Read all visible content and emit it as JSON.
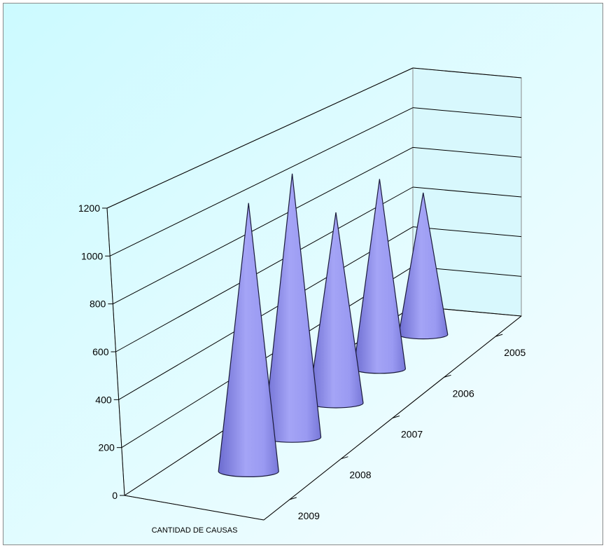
{
  "chart_data": {
    "type": "bar",
    "subtype": "3d-cone",
    "series_axis_label": "CANTIDAD DE CAUSAS",
    "categories": [
      "2005",
      "2006",
      "2007",
      "2008",
      "2009"
    ],
    "values": [
      700,
      900,
      870,
      1160,
      1140
    ],
    "ylim": [
      0,
      1200
    ],
    "yticks": [
      0,
      200,
      400,
      600,
      800,
      1000,
      1200
    ],
    "grid": true,
    "legend": "none",
    "colors": {
      "cone": "#9a9af2",
      "cone_dark": "#6c6cd0",
      "background_top": "#ccfaff",
      "background_bottom": "#f4fdff"
    }
  }
}
